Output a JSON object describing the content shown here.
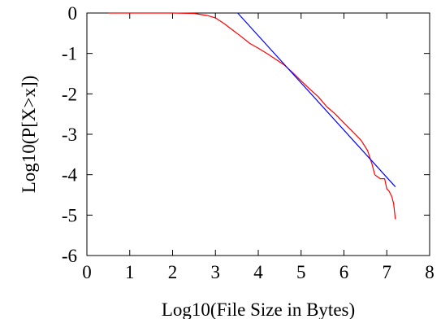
{
  "chart_data": {
    "type": "line",
    "title": "",
    "xlabel": "Log10(File Size in Bytes)",
    "ylabel": "Log10(P[X>x])",
    "xlim": [
      0,
      8
    ],
    "ylim": [
      -6,
      0
    ],
    "x_ticks": [
      0,
      1,
      2,
      3,
      4,
      5,
      6,
      7,
      8
    ],
    "y_ticks": [
      0,
      -1,
      -2,
      -3,
      -4,
      -5,
      -6
    ],
    "x_tick_labels": [
      "0",
      "1",
      "2",
      "3",
      "4",
      "5",
      "6",
      "7",
      "8"
    ],
    "y_tick_labels": [
      "0",
      "-1",
      "-2",
      "-3",
      "-4",
      "-5",
      "-6"
    ],
    "grid": false,
    "legend": "none",
    "series": [
      {
        "color": "#ff0000",
        "points": [
          [
            0.5,
            0.0
          ],
          [
            1.0,
            0.0
          ],
          [
            1.5,
            0.0
          ],
          [
            2.0,
            0.0
          ],
          [
            2.5,
            -0.01
          ],
          [
            2.8,
            -0.06
          ],
          [
            3.0,
            -0.12
          ],
          [
            3.2,
            -0.26
          ],
          [
            3.4,
            -0.42
          ],
          [
            3.6,
            -0.58
          ],
          [
            3.8,
            -0.75
          ],
          [
            4.0,
            -0.87
          ],
          [
            4.2,
            -1.0
          ],
          [
            4.4,
            -1.14
          ],
          [
            4.6,
            -1.28
          ],
          [
            4.8,
            -1.47
          ],
          [
            5.0,
            -1.68
          ],
          [
            5.2,
            -1.88
          ],
          [
            5.4,
            -2.07
          ],
          [
            5.6,
            -2.32
          ],
          [
            5.8,
            -2.5
          ],
          [
            6.0,
            -2.72
          ],
          [
            6.2,
            -2.93
          ],
          [
            6.4,
            -3.15
          ],
          [
            6.55,
            -3.4
          ],
          [
            6.65,
            -3.72
          ],
          [
            6.72,
            -4.0
          ],
          [
            6.78,
            -4.05
          ],
          [
            6.85,
            -4.1
          ],
          [
            6.95,
            -4.1
          ],
          [
            7.0,
            -4.35
          ],
          [
            7.05,
            -4.4
          ],
          [
            7.12,
            -4.55
          ],
          [
            7.16,
            -4.72
          ],
          [
            7.2,
            -5.1
          ]
        ]
      },
      {
        "color": "#0000ff",
        "points": [
          [
            3.52,
            0.0
          ],
          [
            7.2,
            -4.3
          ]
        ]
      }
    ]
  }
}
